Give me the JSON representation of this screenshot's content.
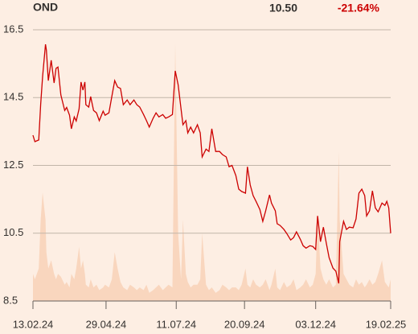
{
  "header": {
    "ticker": "OND",
    "price": "10.50",
    "change": "-21.64%"
  },
  "chart_data": {
    "type": "line",
    "x": [
      "13.02.24",
      "15.02.24",
      "19.02.24",
      "21.02.24",
      "23.02.24",
      "26.02.24",
      "27.02.24",
      "29.02.24",
      "03.03.24",
      "06.03.24",
      "08.03.24",
      "10.03.24",
      "13.03.24",
      "17.03.24",
      "19.03.24",
      "22.03.24",
      "24.03.24",
      "27.03.24",
      "29.03.24",
      "01.04.24",
      "03.04.24",
      "05.04.24",
      "07.04.24",
      "08.04.24",
      "11.04.24",
      "13.04.24",
      "16.04.24",
      "19.04.24",
      "22.04.24",
      "26.04.24",
      "28.04.24",
      "02.05.24",
      "05.05.24",
      "08.05.24",
      "11.05.24",
      "14.05.24",
      "17.05.24",
      "21.05.24",
      "24.05.24",
      "28.05.24",
      "31.05.24",
      "03.06.24",
      "07.06.24",
      "10.06.24",
      "13.06.24",
      "17.06.24",
      "20.06.24",
      "23.06.24",
      "27.06.24",
      "30.06.24",
      "03.07.24",
      "07.07.24",
      "10.07.24",
      "13.07.24",
      "16.07.24",
      "18.07.24",
      "21.07.24",
      "23.07.24",
      "26.07.24",
      "29.07.24",
      "02.08.24",
      "05.08.24",
      "07.08.24",
      "11.08.24",
      "14.08.24",
      "17.08.24",
      "21.08.24",
      "25.08.24",
      "28.08.24",
      "01.09.24",
      "04.09.24",
      "07.09.24",
      "11.09.24",
      "14.09.24",
      "17.09.24",
      "21.09.24",
      "23.09.24",
      "26.09.24",
      "29.09.24",
      "02.10.24",
      "06.10.24",
      "09.10.24",
      "12.10.24",
      "16.10.24",
      "18.10.24",
      "22.10.24",
      "24.10.24",
      "27.10.24",
      "31.10.24",
      "03.11.24",
      "07.11.24",
      "10.11.24",
      "13.11.24",
      "17.11.24",
      "20.11.24",
      "23.11.24",
      "27.11.24",
      "30.11.24",
      "03.12.24",
      "05.12.24",
      "08.12.24",
      "11.12.24",
      "14.12.24",
      "17.12.24",
      "21.12.24",
      "24.12.24",
      "27.12.24",
      "28.12.24",
      "01.01.25",
      "04.01.25",
      "07.01.25",
      "11.01.25",
      "14.01.25",
      "17.01.25",
      "20.01.25",
      "23.01.25",
      "25.01.25",
      "28.01.25",
      "31.01.25",
      "03.02.25",
      "06.02.25",
      "10.02.25",
      "13.02.25",
      "15.02.25",
      "17.02.25",
      "19.02.25"
    ],
    "series": [
      {
        "name": "OND",
        "color": "#cc0000",
        "values": [
          13.39,
          13.2,
          13.25,
          14.3,
          15.12,
          16.07,
          15.9,
          15.0,
          15.6,
          14.93,
          15.36,
          15.4,
          14.58,
          14.12,
          14.21,
          13.98,
          13.58,
          13.93,
          13.81,
          14.17,
          14.96,
          14.72,
          14.96,
          14.29,
          14.22,
          14.53,
          14.12,
          14.05,
          13.82,
          14.1,
          13.98,
          14.05,
          14.53,
          15.0,
          14.81,
          14.77,
          14.29,
          14.43,
          14.29,
          14.43,
          14.29,
          14.22,
          14.0,
          13.82,
          13.63,
          13.89,
          14.05,
          13.93,
          14.0,
          13.89,
          13.93,
          14.0,
          15.29,
          14.88,
          14.17,
          13.7,
          13.82,
          13.46,
          13.63,
          13.46,
          13.7,
          13.46,
          12.75,
          12.98,
          12.91,
          13.58,
          12.91,
          12.91,
          12.82,
          12.75,
          12.46,
          12.5,
          12.2,
          11.8,
          11.73,
          11.68,
          12.46,
          11.92,
          11.61,
          11.44,
          11.2,
          10.85,
          11.16,
          11.63,
          11.39,
          11.16,
          10.78,
          10.73,
          10.61,
          10.49,
          10.3,
          10.37,
          10.54,
          10.32,
          10.13,
          10.06,
          10.13,
          10.11,
          10.02,
          11.01,
          10.25,
          10.68,
          10.21,
          9.78,
          9.47,
          9.38,
          9.02,
          10.25,
          10.85,
          10.61,
          10.68,
          10.66,
          10.92,
          11.68,
          11.8,
          11.61,
          11.01,
          11.16,
          11.75,
          11.25,
          11.13,
          11.39,
          11.32,
          11.44,
          11.25,
          10.5
        ]
      },
      {
        "name": "Volume",
        "color": "#f9d6be",
        "axis": "y2",
        "values": [
          10,
          8,
          12,
          30,
          40,
          30,
          18,
          12,
          15,
          10,
          8,
          10,
          9,
          6,
          7,
          5,
          10,
          8,
          12,
          20,
          12,
          15,
          10,
          6,
          5,
          8,
          5,
          6,
          4,
          5,
          6,
          5,
          8,
          18,
          12,
          7,
          5,
          4,
          6,
          5,
          4,
          5,
          4,
          6,
          3,
          4,
          5,
          6,
          4,
          5,
          6,
          5,
          95,
          25,
          8,
          30,
          10,
          7,
          5,
          6,
          6,
          8,
          25,
          6,
          4,
          5,
          3,
          4,
          6,
          5,
          4,
          5,
          5,
          4,
          6,
          12,
          6,
          5,
          8,
          6,
          5,
          6,
          8,
          4,
          6,
          12,
          5,
          4,
          7,
          5,
          6,
          8,
          4,
          5,
          6,
          8,
          5,
          6,
          10,
          32,
          12,
          8,
          6,
          8,
          5,
          6,
          55,
          30,
          10,
          8,
          6,
          5,
          8,
          6,
          7,
          5,
          6,
          8,
          6,
          7,
          10,
          15,
          7,
          6,
          5,
          8
        ]
      }
    ],
    "xlim": [
      "13.02.24",
      "19.02.25"
    ],
    "xticks": [
      "13.02.24",
      "29.04.24",
      "11.07.24",
      "20.09.24",
      "03.12.24",
      "19.02.25"
    ],
    "ylim": [
      8.5,
      16.5
    ],
    "yticks": [
      8.5,
      10.5,
      12.5,
      14.5,
      16.5
    ],
    "y2lim": [
      0,
      100
    ],
    "grid": true
  }
}
